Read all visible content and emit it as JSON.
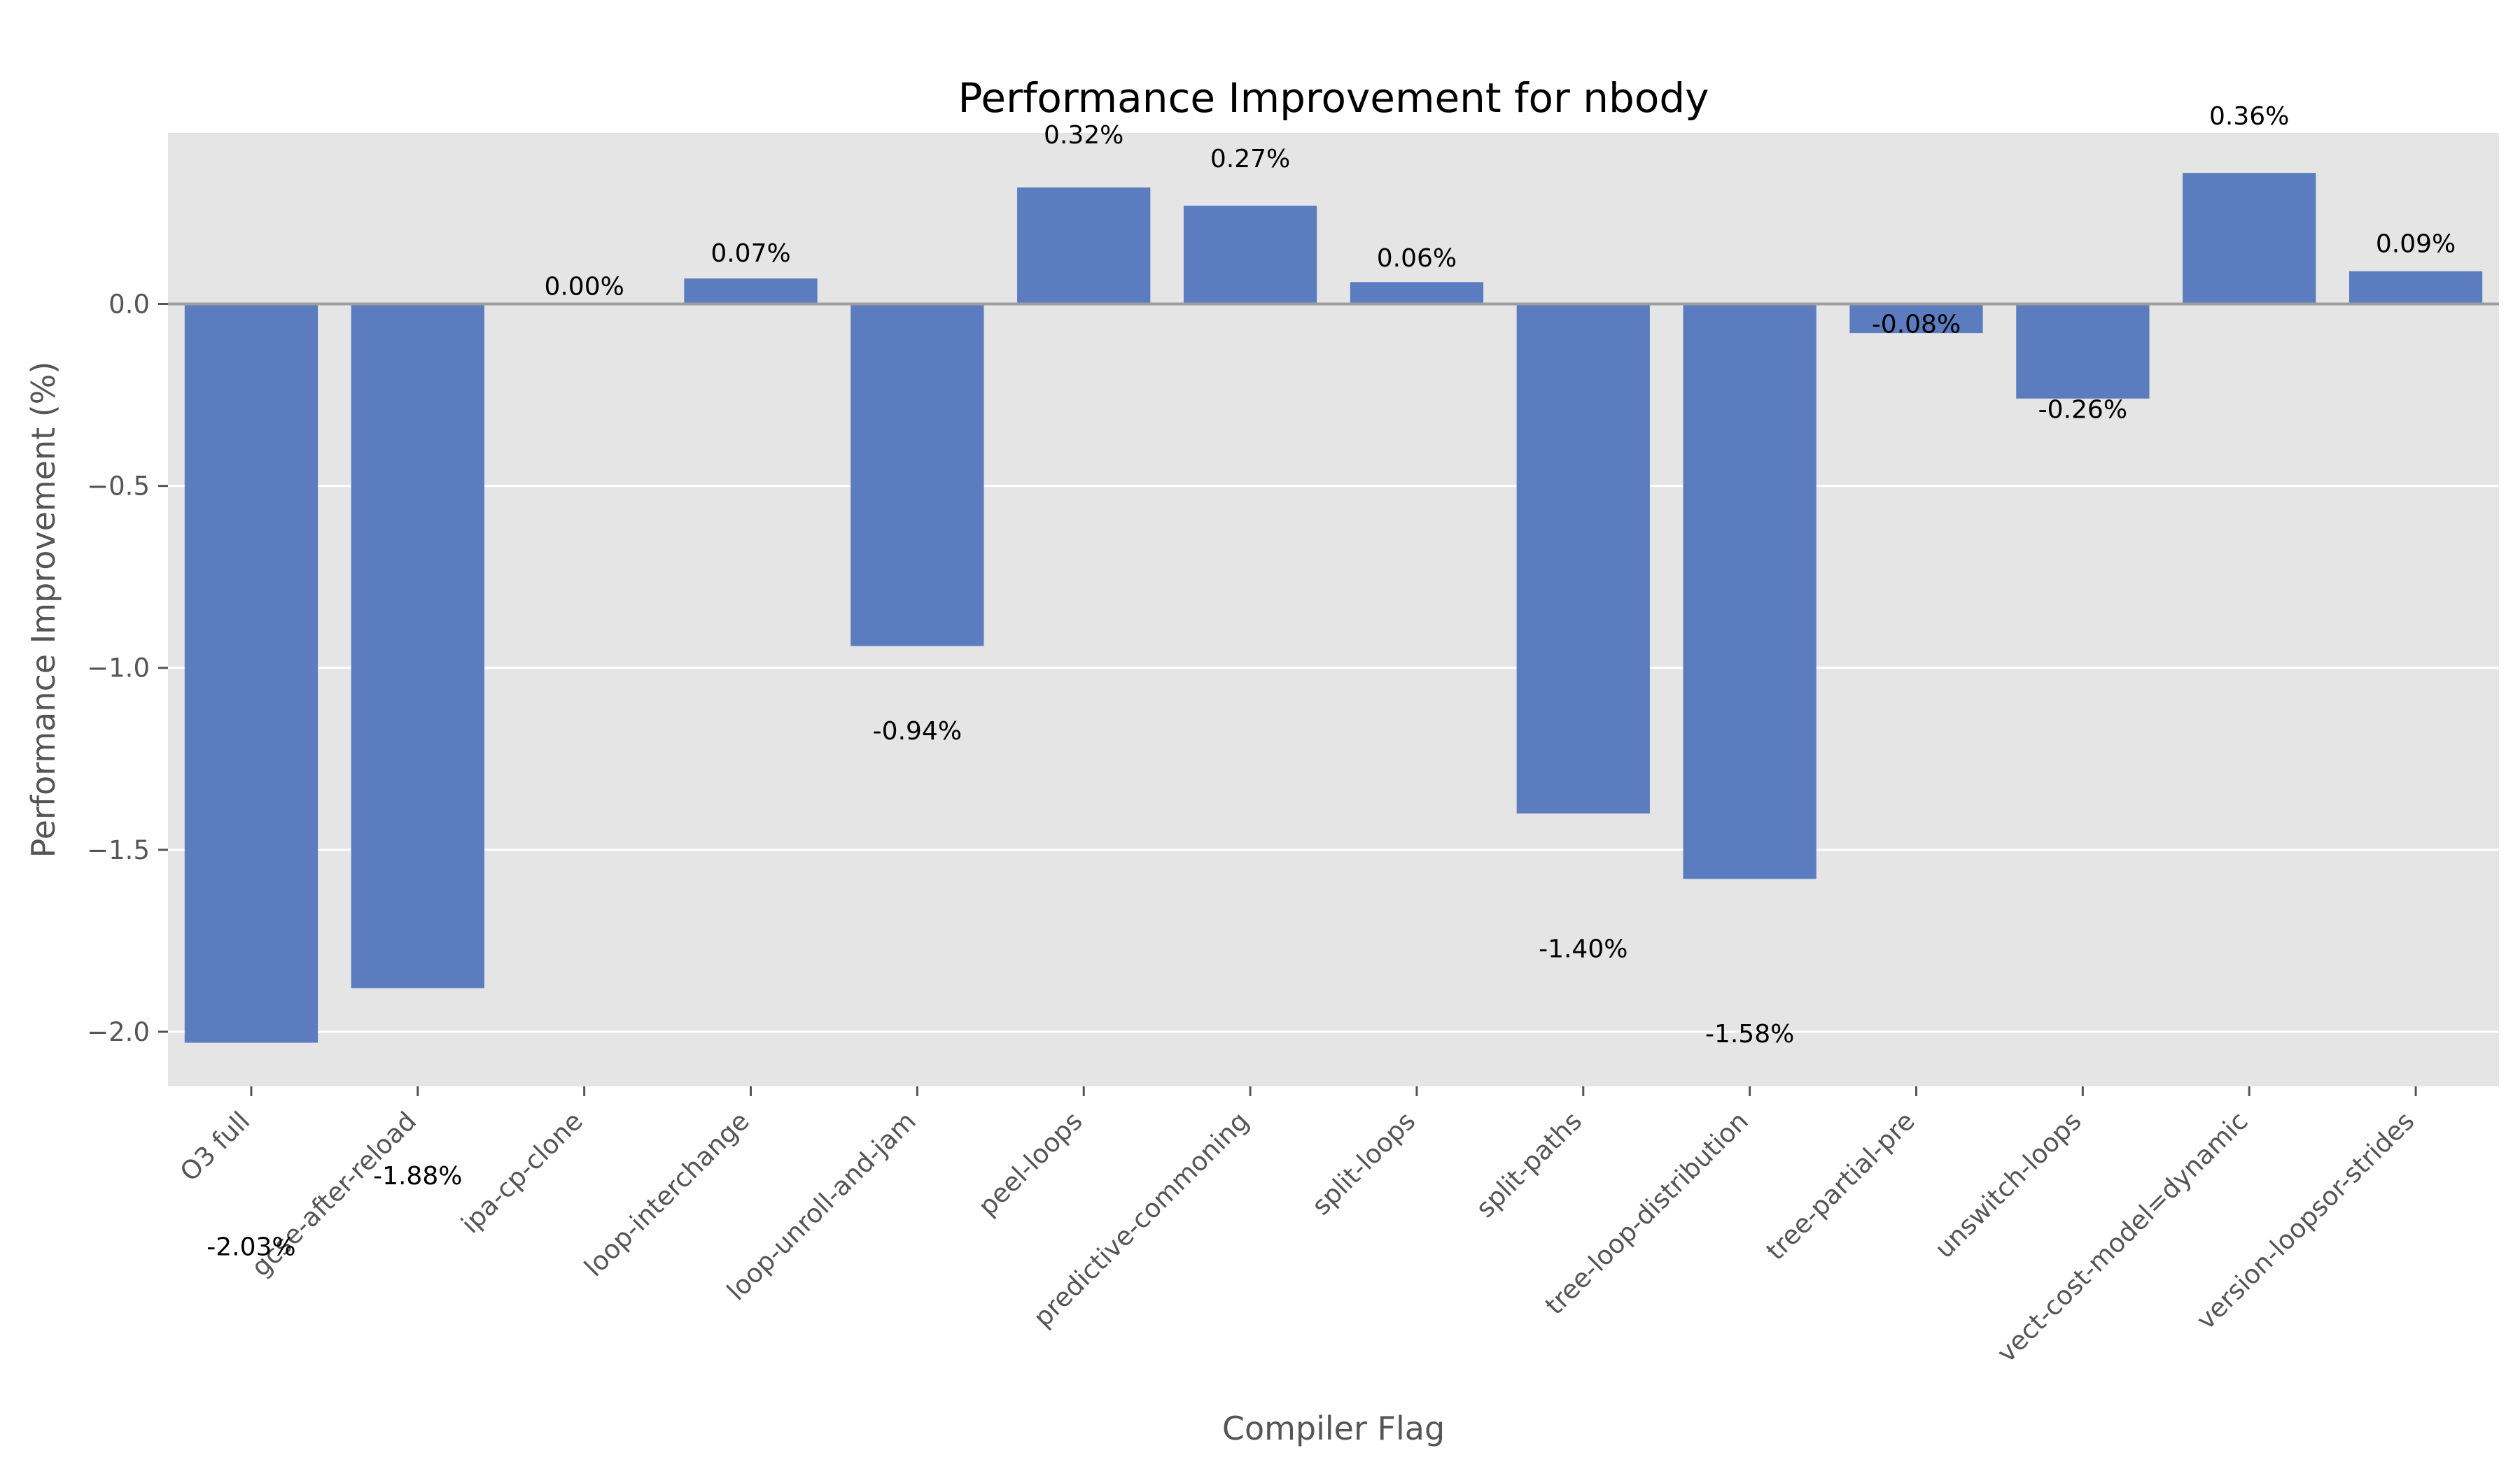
{
  "chart_data": {
    "type": "bar",
    "title": "Performance Improvement for nbody",
    "xlabel": "Compiler Flag",
    "ylabel": "Performance Improvement (%)",
    "categories": [
      "O3 full",
      "gcse-after-reload",
      "ipa-cp-clone",
      "loop-interchange",
      "loop-unroll-and-jam",
      "peel-loops",
      "predictive-commoning",
      "split-loops",
      "split-paths",
      "tree-loop-distribution",
      "tree-partial-pre",
      "unswitch-loops",
      "vect-cost-model=dynamic",
      "version-loopsor-strides"
    ],
    "values": [
      -2.03,
      -1.88,
      0.0,
      0.07,
      -0.94,
      0.32,
      0.27,
      0.06,
      -1.4,
      -1.58,
      -0.08,
      -0.26,
      0.36,
      0.09
    ],
    "data_labels": [
      "-2.03%",
      "-1.88%",
      "0.00%",
      "0.07%",
      "-0.94%",
      "0.32%",
      "0.27%",
      "0.06%",
      "-1.40%",
      "-1.58%",
      "-0.08%",
      "-0.26%",
      "0.36%",
      "0.09%"
    ],
    "yticks": [
      0.0,
      -0.5,
      -1.0,
      -1.5,
      -2.0
    ],
    "ytick_labels": [
      "0.0",
      "−0.5",
      "−1.0",
      "−1.5",
      "−2.0"
    ],
    "ylim": [
      -2.15,
      0.47
    ],
    "grid": true,
    "colors": {
      "bar": "#5b7cbf",
      "plot_background": "#e5e5e5",
      "grid": "#ffffff",
      "zero_line": "#9e9e9e"
    }
  }
}
